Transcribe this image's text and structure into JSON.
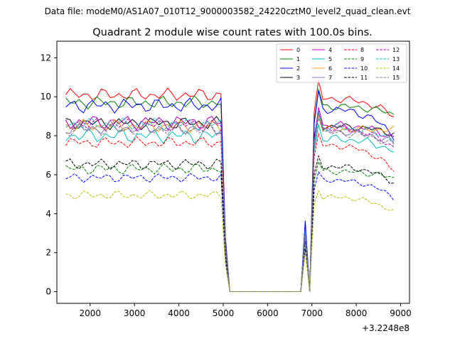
{
  "chart_data": {
    "type": "line",
    "suptitle": "Data file: modeM0/AS1A07_010T12_9000003582_24220cztM0_level2_quad_clean.evt",
    "title": "Quadrant 2 module wise count rates with 100.0s bins.",
    "xlabel": "",
    "ylabel": "",
    "x_offset_label": "+3.2248e8",
    "xlim": [
      1250,
      9200
    ],
    "ylim": [
      -0.6,
      12.85
    ],
    "xticks": [
      2000,
      3000,
      4000,
      5000,
      6000,
      7000,
      8000,
      9000
    ],
    "yticks": [
      0,
      2,
      4,
      6,
      8,
      10,
      12
    ],
    "legend_position": "top-right",
    "series": [
      {
        "name": "0",
        "color": "#ff0000",
        "dash": "solid",
        "base": 10.1,
        "amp": 0.35,
        "end": 9.0,
        "high": 0.62
      },
      {
        "name": "1",
        "color": "#008000",
        "dash": "solid",
        "base": 9.7,
        "amp": 0.35,
        "end": 9.1,
        "high": 0.6
      },
      {
        "name": "2",
        "color": "#0000ff",
        "dash": "solid",
        "base": 9.55,
        "amp": 0.4,
        "end": 8.0,
        "high": 0.65
      },
      {
        "name": "3",
        "color": "#000000",
        "dash": "solid",
        "base": 8.65,
        "amp": 0.35,
        "end": 8.1,
        "high": 0.55
      },
      {
        "name": "4",
        "color": "#bf00bf",
        "dash": "solid",
        "base": 8.7,
        "amp": 0.4,
        "end": 7.9,
        "high": 0.72
      },
      {
        "name": "5",
        "color": "#00bfbf",
        "dash": "solid",
        "base": 8.0,
        "amp": 0.4,
        "end": 7.2,
        "high": 0.6
      },
      {
        "name": "6",
        "color": "#ff9900",
        "dash": "solid",
        "base": 8.5,
        "amp": 0.35,
        "end": 8.3,
        "high": 0.55
      },
      {
        "name": "7",
        "color": "#8c6bbd",
        "dash": "solid",
        "base": 8.4,
        "amp": 0.4,
        "end": 7.6,
        "high": 0.8
      },
      {
        "name": "8",
        "color": "#ff0000",
        "dash": "dashed",
        "base": 7.65,
        "amp": 0.3,
        "end": 6.2,
        "high": 0.5
      },
      {
        "name": "9",
        "color": "#008000",
        "dash": "dashed",
        "base": 6.3,
        "amp": 0.3,
        "end": 5.8,
        "high": 0.48
      },
      {
        "name": "10",
        "color": "#0000ff",
        "dash": "dashed",
        "base": 5.85,
        "amp": 0.25,
        "end": 4.8,
        "high": 0.42
      },
      {
        "name": "11",
        "color": "#000000",
        "dash": "dashed",
        "base": 6.55,
        "amp": 0.3,
        "end": 5.6,
        "high": 0.52
      },
      {
        "name": "12",
        "color": "#bf00bf",
        "dash": "dashed",
        "base": 8.55,
        "amp": 0.35,
        "end": 7.4,
        "high": 0.7
      },
      {
        "name": "13",
        "color": "#00bfbf",
        "dash": "dashed",
        "base": 8.6,
        "amp": 0.35,
        "end": 7.8,
        "high": 0.62
      },
      {
        "name": "14",
        "color": "#bfbf00",
        "dash": "dashed",
        "base": 4.95,
        "amp": 0.25,
        "end": 4.1,
        "high": 0.38
      },
      {
        "name": "15",
        "color": "#808080",
        "dash": "dashed",
        "base": 8.3,
        "amp": 0.35,
        "end": 7.5,
        "high": 0.6
      }
    ],
    "time_profile": {
      "x_start": 1450,
      "bin": 100,
      "bins": 75,
      "drop_start": 5050,
      "zero_start": 5150,
      "zero_end": 6750,
      "spike1": [
        6850,
        0.35
      ],
      "dip": [
        6950,
        0.0
      ],
      "spike2": [
        7150,
        1.0
      ]
    }
  }
}
